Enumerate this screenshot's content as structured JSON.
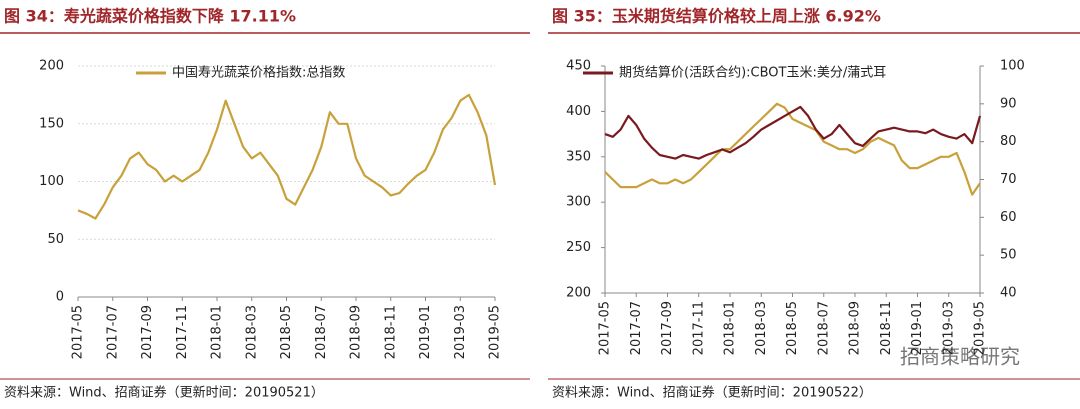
{
  "chart_data": [
    {
      "type": "line",
      "title": "图 34：寿光蔬菜价格指数下降 17.11%",
      "categories": [
        "2017-05",
        null,
        null,
        null,
        "2017-07",
        null,
        null,
        null,
        "2017-09",
        null,
        null,
        null,
        "2017-11",
        null,
        null,
        null,
        "2018-01",
        null,
        null,
        null,
        "2018-03",
        null,
        null,
        null,
        "2018-05",
        null,
        null,
        null,
        "2018-07",
        null,
        null,
        null,
        "2018-09",
        null,
        null,
        null,
        "2018-11",
        null,
        null,
        null,
        "2019-01",
        null,
        null,
        null,
        "2019-03",
        null,
        null,
        null,
        "2019-05"
      ],
      "series": [
        {
          "name": "中国寿光蔬菜价格指数:总指数",
          "color": "#c9a13b",
          "values": [
            75,
            72,
            68,
            80,
            95,
            105,
            120,
            125,
            115,
            110,
            100,
            105,
            100,
            105,
            110,
            125,
            145,
            170,
            150,
            130,
            120,
            125,
            115,
            105,
            85,
            80,
            95,
            110,
            130,
            160,
            150,
            150,
            120,
            105,
            100,
            95,
            88,
            90,
            98,
            105,
            110,
            125,
            145,
            155,
            170,
            175,
            160,
            140,
            97
          ]
        }
      ],
      "ylim": [
        0,
        200
      ],
      "yticks": [
        0,
        50,
        100,
        150,
        200
      ],
      "grid": true,
      "legend": "top",
      "source": "资料来源：Wind、招商证券（更新时间：20190521）"
    },
    {
      "type": "line",
      "title": "图 35：玉米期货结算价格较上周上涨 6.92%",
      "categories": [
        "2017-05",
        null,
        null,
        null,
        "2017-07",
        null,
        null,
        null,
        "2017-09",
        null,
        null,
        null,
        "2017-11",
        null,
        null,
        null,
        "2018-01",
        null,
        null,
        null,
        "2018-03",
        null,
        null,
        null,
        "2018-05",
        null,
        null,
        null,
        "2018-07",
        null,
        null,
        null,
        "2018-09",
        null,
        null,
        null,
        "2018-11",
        null,
        null,
        null,
        "2019-01",
        null,
        null,
        null,
        "2019-03",
        null,
        null,
        null,
        "2019-05"
      ],
      "series": [
        {
          "name": "期货结算价(活跃合约):CBOT玉米:美分/蒲式耳",
          "color": "#7a1a1e",
          "values": [
            375,
            372,
            380,
            395,
            385,
            370,
            360,
            352,
            350,
            348,
            352,
            350,
            348,
            352,
            355,
            358,
            355,
            360,
            365,
            372,
            380,
            385,
            390,
            395,
            400,
            405,
            395,
            380,
            370,
            375,
            385,
            375,
            365,
            362,
            370,
            378,
            380,
            382,
            380,
            378,
            378,
            376,
            380,
            375,
            372,
            370,
            375,
            365,
            395
          ]
        },
        {
          "color": "#c9a13b",
          "axis": "y2",
          "values": [
            72,
            70,
            68,
            68,
            68,
            69,
            70,
            69,
            69,
            70,
            69,
            70,
            72,
            74,
            76,
            78,
            78,
            80,
            82,
            84,
            86,
            88,
            90,
            89,
            86,
            85,
            84,
            83,
            80,
            79,
            78,
            78,
            77,
            78,
            80,
            81,
            80,
            79,
            75,
            73,
            73,
            74,
            75,
            76,
            76,
            77,
            72,
            66,
            69
          ]
        }
      ],
      "ylim": [
        200,
        450
      ],
      "yticks": [
        200,
        250,
        300,
        350,
        400,
        450
      ],
      "y2lim": [
        40,
        100
      ],
      "y2ticks": [
        40,
        50,
        60,
        70,
        80,
        90,
        100
      ],
      "grid": false,
      "legend": "top-left",
      "source": "资料来源：Wind、招商证券（更新时间：20190522）"
    }
  ],
  "watermark": "招商策略研究"
}
